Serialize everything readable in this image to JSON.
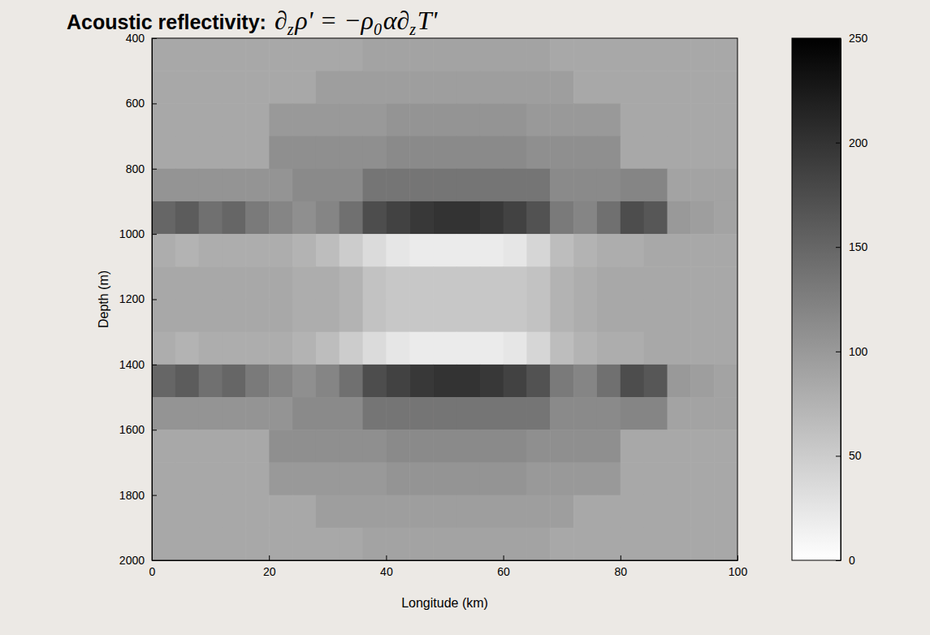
{
  "chart_data": {
    "type": "heatmap",
    "title": "Acoustic reflectivity:",
    "equation": [
      [
        "∂",
        "z"
      ],
      [
        "ρ' = −ρ",
        "0"
      ],
      [
        "α∂",
        "z"
      ],
      [
        "T'",
        null
      ]
    ],
    "x_label": "Longitude (km)",
    "y_label": "Depth (m)",
    "xlim": [
      0,
      100
    ],
    "xticks": [
      0,
      20,
      40,
      60,
      80,
      100
    ],
    "ylim": [
      2000,
      400
    ],
    "yticks": [
      400,
      600,
      800,
      1000,
      1200,
      1400,
      1600,
      1800,
      2000
    ],
    "x": [
      2,
      6,
      10,
      14,
      18,
      22,
      26,
      30,
      34,
      38,
      42,
      46,
      50,
      54,
      58,
      62,
      66,
      70,
      74,
      78,
      82,
      86,
      90,
      94,
      98
    ],
    "y": [
      450,
      550,
      650,
      750,
      850,
      950,
      1050,
      1150,
      1250,
      1350,
      1450,
      1550,
      1650,
      1750,
      1850,
      1950
    ],
    "z": [
      [
        85,
        85,
        85,
        85,
        85,
        85,
        85,
        85,
        85,
        90,
        90,
        90,
        90,
        90,
        90,
        90,
        90,
        85,
        85,
        85,
        85,
        85,
        85,
        85,
        85
      ],
      [
        85,
        85,
        85,
        85,
        85,
        85,
        85,
        95,
        95,
        95,
        95,
        95,
        95,
        95,
        95,
        95,
        95,
        95,
        85,
        85,
        85,
        85,
        85,
        85,
        85
      ],
      [
        85,
        85,
        85,
        85,
        85,
        100,
        100,
        100,
        100,
        100,
        105,
        105,
        105,
        105,
        105,
        105,
        100,
        100,
        100,
        100,
        85,
        85,
        85,
        85,
        85
      ],
      [
        85,
        85,
        85,
        85,
        85,
        110,
        110,
        110,
        110,
        110,
        115,
        115,
        115,
        115,
        115,
        115,
        110,
        110,
        110,
        110,
        85,
        85,
        85,
        85,
        85
      ],
      [
        105,
        105,
        105,
        105,
        105,
        105,
        115,
        115,
        115,
        135,
        135,
        135,
        135,
        135,
        135,
        135,
        135,
        115,
        115,
        115,
        120,
        120,
        90,
        90,
        90
      ],
      [
        150,
        160,
        140,
        150,
        130,
        120,
        110,
        120,
        140,
        175,
        185,
        195,
        200,
        200,
        195,
        185,
        170,
        130,
        120,
        140,
        175,
        165,
        100,
        95,
        90
      ],
      [
        80,
        75,
        80,
        80,
        80,
        80,
        75,
        65,
        50,
        35,
        25,
        20,
        20,
        20,
        20,
        25,
        40,
        65,
        75,
        80,
        80,
        85,
        85,
        85,
        85
      ],
      [
        85,
        85,
        85,
        85,
        85,
        85,
        80,
        80,
        75,
        60,
        55,
        55,
        55,
        55,
        55,
        55,
        60,
        75,
        80,
        85,
        85,
        85,
        85,
        85,
        85
      ],
      [
        85,
        85,
        85,
        85,
        85,
        85,
        80,
        80,
        75,
        60,
        55,
        55,
        55,
        55,
        55,
        55,
        60,
        75,
        80,
        85,
        85,
        85,
        85,
        85,
        85
      ],
      [
        80,
        75,
        80,
        80,
        80,
        80,
        75,
        65,
        50,
        35,
        25,
        20,
        20,
        20,
        20,
        25,
        40,
        65,
        75,
        80,
        80,
        85,
        85,
        85,
        85
      ],
      [
        150,
        160,
        140,
        150,
        130,
        120,
        110,
        120,
        140,
        175,
        185,
        195,
        200,
        200,
        195,
        185,
        170,
        130,
        120,
        140,
        175,
        165,
        100,
        95,
        90
      ],
      [
        105,
        105,
        105,
        105,
        105,
        105,
        115,
        115,
        115,
        135,
        135,
        135,
        135,
        135,
        135,
        135,
        135,
        115,
        115,
        115,
        120,
        120,
        90,
        90,
        90
      ],
      [
        85,
        85,
        85,
        85,
        85,
        110,
        110,
        110,
        110,
        110,
        115,
        115,
        115,
        115,
        115,
        115,
        110,
        110,
        110,
        110,
        85,
        85,
        85,
        85,
        85
      ],
      [
        85,
        85,
        85,
        85,
        85,
        100,
        100,
        100,
        100,
        100,
        105,
        105,
        105,
        105,
        105,
        105,
        100,
        100,
        100,
        100,
        85,
        85,
        85,
        85,
        85
      ],
      [
        85,
        85,
        85,
        85,
        85,
        85,
        85,
        95,
        95,
        95,
        95,
        95,
        95,
        95,
        95,
        95,
        95,
        95,
        85,
        85,
        85,
        85,
        85,
        85,
        85
      ],
      [
        85,
        85,
        85,
        85,
        85,
        85,
        85,
        85,
        85,
        90,
        90,
        90,
        90,
        90,
        90,
        90,
        90,
        85,
        85,
        85,
        85,
        85,
        85,
        85,
        85
      ]
    ],
    "colorbar": {
      "range": [
        0,
        250
      ],
      "ticks": [
        0,
        50,
        100,
        150,
        200,
        250
      ]
    }
  }
}
